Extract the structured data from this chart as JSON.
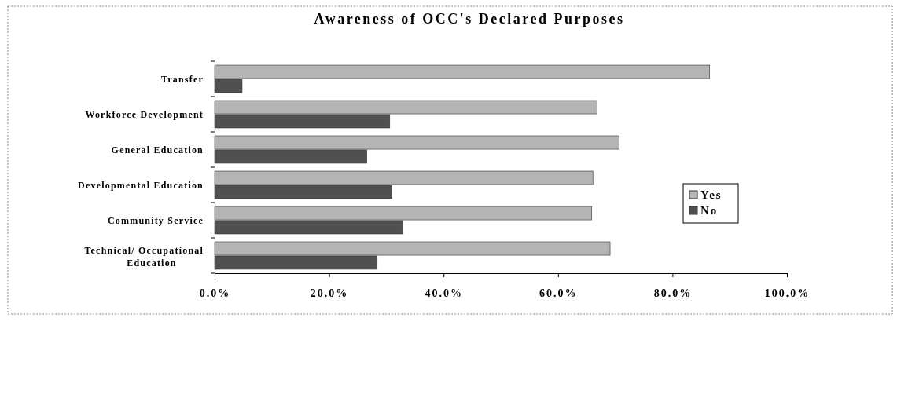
{
  "chart_data": {
    "type": "bar",
    "orientation": "horizontal",
    "title": "Awareness of OCC's Declared Purposes",
    "categories": [
      "Transfer",
      "Workforce Development",
      "General Education",
      "Developmental Education",
      "Community Service",
      "Technical/ Occupational Education"
    ],
    "series": [
      {
        "name": "Yes",
        "color": "#b4b4b4",
        "values": [
          86.5,
          66.8,
          70.7,
          66.1,
          65.9,
          69.1
        ]
      },
      {
        "name": "No",
        "color": "#505050",
        "values": [
          4.8,
          30.6,
          26.6,
          31.0,
          32.8,
          28.4
        ]
      }
    ],
    "xlim": [
      0,
      100
    ],
    "xticks": [
      {
        "value": 0,
        "label": "0.0%"
      },
      {
        "value": 20,
        "label": "20.0%"
      },
      {
        "value": 40,
        "label": "40.0%"
      },
      {
        "value": 60,
        "label": "60.0%"
      },
      {
        "value": 80,
        "label": "80.0%"
      },
      {
        "value": 100,
        "label": "100.0%"
      }
    ],
    "legend": "right",
    "grid": false
  }
}
